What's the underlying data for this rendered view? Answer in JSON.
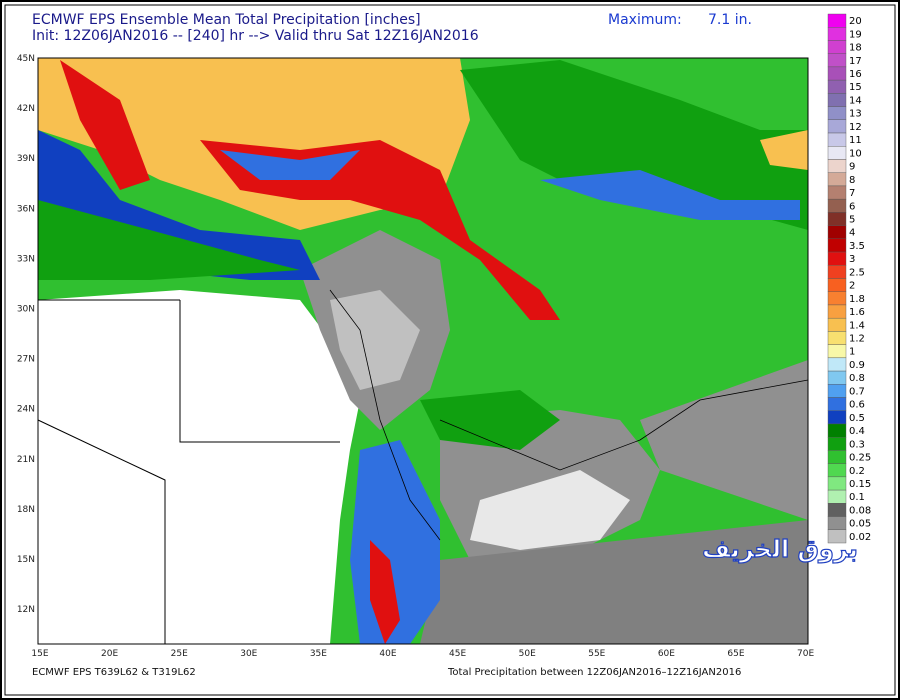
{
  "header": {
    "title": "ECMWF EPS Ensemble Mean Total Precipitation [inches]",
    "init": "Init: 12Z06JAN2016 -- [240] hr --> Valid thru Sat 12Z16JAN2016",
    "maximum_label": "Maximum:",
    "maximum_value": "7.1 in."
  },
  "map": {
    "lat_labels": [
      "45N",
      "42N",
      "39N",
      "36N",
      "33N",
      "30N",
      "27N",
      "24N",
      "21N",
      "18N",
      "15N",
      "12N"
    ],
    "lon_labels": [
      "15E",
      "20E",
      "25E",
      "30E",
      "35E",
      "40E",
      "45E",
      "50E",
      "55E",
      "60E",
      "65E",
      "70E"
    ],
    "watermark": "بروق الخريف"
  },
  "legend": {
    "levels": [
      {
        "label": "20",
        "color": "#f000f0"
      },
      {
        "label": "19",
        "color": "#e030e0"
      },
      {
        "label": "18",
        "color": "#d040d0"
      },
      {
        "label": "17",
        "color": "#c050c8"
      },
      {
        "label": "16",
        "color": "#a850b8"
      },
      {
        "label": "15",
        "color": "#9060b0"
      },
      {
        "label": "14",
        "color": "#8070b0"
      },
      {
        "label": "13",
        "color": "#9090c8"
      },
      {
        "label": "12",
        "color": "#a8a8d8"
      },
      {
        "label": "11",
        "color": "#c8c8e8"
      },
      {
        "label": "10",
        "color": "#e8e8f4"
      },
      {
        "label": "9",
        "color": "#ecd4cc"
      },
      {
        "label": "8",
        "color": "#d4aa98"
      },
      {
        "label": "7",
        "color": "#b48070"
      },
      {
        "label": "6",
        "color": "#946050"
      },
      {
        "label": "5",
        "color": "#803028"
      },
      {
        "label": "4",
        "color": "#a00000"
      },
      {
        "label": "3.5",
        "color": "#c00000"
      },
      {
        "label": "3",
        "color": "#e01010"
      },
      {
        "label": "2.5",
        "color": "#f04020"
      },
      {
        "label": "2",
        "color": "#f86020"
      },
      {
        "label": "1.8",
        "color": "#f88030"
      },
      {
        "label": "1.6",
        "color": "#f8a040"
      },
      {
        "label": "1.4",
        "color": "#f8c050"
      },
      {
        "label": "1.2",
        "color": "#f8e070"
      },
      {
        "label": "1",
        "color": "#f8f8a8"
      },
      {
        "label": "0.9",
        "color": "#c0e8f8"
      },
      {
        "label": "0.8",
        "color": "#80c8f0"
      },
      {
        "label": "0.7",
        "color": "#50a0f0"
      },
      {
        "label": "0.6",
        "color": "#3070e0"
      },
      {
        "label": "0.5",
        "color": "#1040c0"
      },
      {
        "label": "0.4",
        "color": "#008000"
      },
      {
        "label": "0.3",
        "color": "#10a010"
      },
      {
        "label": "0.25",
        "color": "#30c030"
      },
      {
        "label": "0.2",
        "color": "#50d850"
      },
      {
        "label": "0.15",
        "color": "#80e880"
      },
      {
        "label": "0.1",
        "color": "#b0f0b0"
      },
      {
        "label": "0.08",
        "color": "#606060"
      },
      {
        "label": "0.05",
        "color": "#909090"
      },
      {
        "label": "0.02",
        "color": "#c0c0c0"
      }
    ]
  },
  "footer": {
    "left": "ECMWF EPS T639L62 & T319L62",
    "right": "Total Precipitation between 12Z06JAN2016–12Z16JAN2016"
  }
}
